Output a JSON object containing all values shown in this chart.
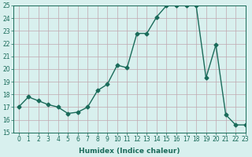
{
  "x": [
    0,
    1,
    2,
    3,
    4,
    5,
    6,
    7,
    8,
    9,
    10,
    11,
    12,
    13,
    14,
    15,
    16,
    17,
    18,
    19,
    20,
    21,
    22,
    23
  ],
  "y": [
    17,
    17.8,
    17.5,
    17.2,
    17.0,
    16.5,
    16.6,
    17.0,
    18.3,
    18.8,
    20.3,
    20.1,
    22.8,
    22.8,
    24.1,
    25.0,
    25.0,
    25.0,
    25.0,
    19.3,
    21.9,
    16.4,
    15.6,
    15.6
  ],
  "xlabel": "Humidex (Indice chaleur)",
  "ylim": [
    15,
    25
  ],
  "xlim": [
    -0.5,
    23
  ],
  "yticks": [
    15,
    16,
    17,
    18,
    19,
    20,
    21,
    22,
    23,
    24,
    25
  ],
  "xticks": [
    0,
    1,
    2,
    3,
    4,
    5,
    6,
    7,
    8,
    9,
    10,
    11,
    12,
    13,
    14,
    15,
    16,
    17,
    18,
    19,
    20,
    21,
    22,
    23
  ],
  "line_color": "#1a6b5a",
  "bg_color": "#d8f0ee",
  "grid_color": "#c0a8b0",
  "marker": "D",
  "marker_size": 2.5,
  "line_width": 1.0,
  "tick_fontsize": 5.5,
  "xlabel_fontsize": 6.5
}
